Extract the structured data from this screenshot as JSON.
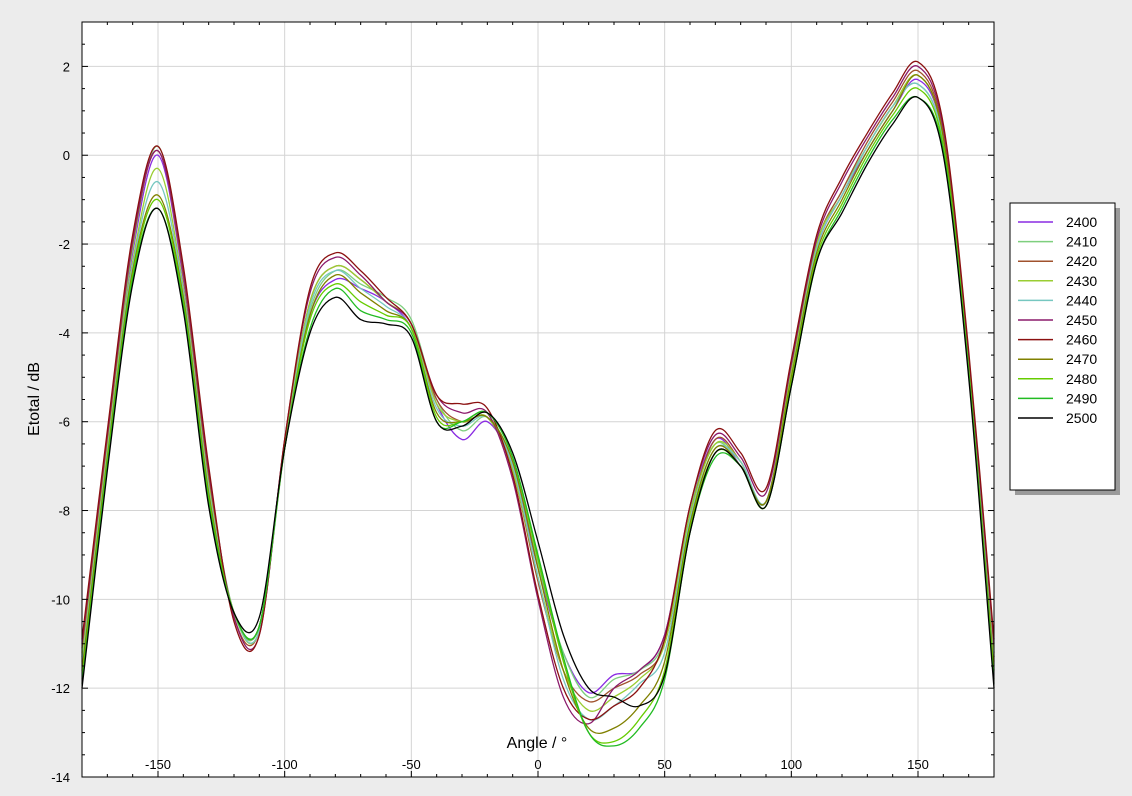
{
  "chart_data": {
    "type": "line",
    "title": "",
    "xlabel": "Angle / °",
    "ylabel": "Etotal / dB",
    "xlim": [
      -180,
      180
    ],
    "ylim": [
      -14,
      3
    ],
    "x_ticks": [
      -150,
      -100,
      -50,
      0,
      50,
      100,
      150
    ],
    "y_ticks": [
      2,
      0,
      -2,
      -4,
      -6,
      -8,
      -10,
      -12,
      -14
    ],
    "grid": true,
    "legend_position": "right",
    "x": [
      -180,
      -170,
      -160,
      -150,
      -140,
      -130,
      -120,
      -110,
      -100,
      -90,
      -80,
      -70,
      -60,
      -50,
      -40,
      -30,
      -20,
      -10,
      0,
      10,
      20,
      30,
      40,
      50,
      60,
      70,
      80,
      90,
      100,
      110,
      120,
      130,
      140,
      150,
      160,
      170,
      180
    ],
    "series": [
      {
        "name": "2400",
        "color": "#8a2be2",
        "values": [
          -11.2,
          -6.5,
          -2.2,
          0.0,
          -2.8,
          -7.3,
          -10.3,
          -10.6,
          -6.5,
          -3.6,
          -2.8,
          -3.0,
          -3.3,
          -3.9,
          -5.6,
          -6.4,
          -6.0,
          -7.0,
          -9.3,
          -11.2,
          -12.1,
          -11.7,
          -11.6,
          -10.8,
          -8.0,
          -6.4,
          -7.0,
          -7.8,
          -4.8,
          -2.1,
          -0.9,
          0.1,
          1.0,
          1.7,
          0.4,
          -4.6,
          -11.3
        ]
      },
      {
        "name": "2410",
        "color": "#7ecf7e",
        "values": [
          -11.3,
          -6.5,
          -2.1,
          0.2,
          -2.7,
          -7.2,
          -10.3,
          -10.6,
          -6.5,
          -3.5,
          -2.6,
          -2.9,
          -3.2,
          -3.7,
          -5.5,
          -6.2,
          -5.9,
          -6.9,
          -9.2,
          -11.2,
          -12.2,
          -11.8,
          -11.6,
          -10.9,
          -8.0,
          -6.5,
          -7.0,
          -7.8,
          -4.8,
          -2.0,
          -0.8,
          0.2,
          1.1,
          1.6,
          0.3,
          -4.6,
          -11.3
        ]
      },
      {
        "name": "2420",
        "color": "#a0522d",
        "values": [
          -11.1,
          -6.4,
          -2.0,
          0.1,
          -2.7,
          -7.2,
          -10.4,
          -10.7,
          -6.5,
          -3.3,
          -2.5,
          -2.8,
          -3.3,
          -3.8,
          -5.5,
          -6.0,
          -5.9,
          -7.1,
          -9.6,
          -11.6,
          -12.3,
          -12.0,
          -11.7,
          -11.0,
          -8.1,
          -6.4,
          -6.9,
          -7.8,
          -4.9,
          -2.0,
          -0.8,
          0.3,
          1.2,
          1.9,
          0.5,
          -4.6,
          -11.2
        ]
      },
      {
        "name": "2430",
        "color": "#9acd32",
        "values": [
          -11.4,
          -6.6,
          -2.4,
          -0.3,
          -3.0,
          -7.4,
          -10.3,
          -10.7,
          -6.5,
          -3.3,
          -2.5,
          -2.8,
          -3.3,
          -3.8,
          -5.6,
          -6.0,
          -5.9,
          -7.1,
          -9.5,
          -11.6,
          -12.5,
          -12.2,
          -11.8,
          -11.0,
          -8.1,
          -6.5,
          -6.9,
          -7.8,
          -4.9,
          -2.0,
          -0.9,
          0.2,
          1.1,
          1.8,
          0.4,
          -4.7,
          -11.4
        ]
      },
      {
        "name": "2440",
        "color": "#76c7c0",
        "values": [
          -11.5,
          -6.7,
          -2.5,
          -0.6,
          -3.1,
          -7.5,
          -10.3,
          -10.7,
          -6.6,
          -3.4,
          -2.6,
          -3.0,
          -3.4,
          -3.9,
          -5.7,
          -6.1,
          -5.9,
          -7.0,
          -9.5,
          -11.8,
          -12.7,
          -12.4,
          -11.9,
          -11.2,
          -8.2,
          -6.6,
          -6.9,
          -7.8,
          -5.0,
          -2.1,
          -0.9,
          0.2,
          1.1,
          1.6,
          0.3,
          -4.7,
          -11.5
        ]
      },
      {
        "name": "2450",
        "color": "#8b1a6b",
        "values": [
          -11.0,
          -6.3,
          -1.9,
          0.1,
          -2.6,
          -7.1,
          -10.4,
          -10.8,
          -6.4,
          -3.1,
          -2.3,
          -2.7,
          -3.3,
          -3.8,
          -5.4,
          -5.8,
          -5.8,
          -7.3,
          -10.0,
          -12.2,
          -12.8,
          -12.0,
          -11.6,
          -10.8,
          -7.9,
          -6.3,
          -6.8,
          -7.6,
          -4.7,
          -1.9,
          -0.6,
          0.4,
          1.3,
          2.0,
          0.6,
          -4.5,
          -11.0
        ]
      },
      {
        "name": "2460",
        "color": "#8b1010",
        "values": [
          -10.9,
          -6.2,
          -1.8,
          0.2,
          -2.5,
          -7.0,
          -10.5,
          -10.8,
          -6.4,
          -3.0,
          -2.2,
          -2.6,
          -3.2,
          -3.8,
          -5.4,
          -5.6,
          -5.7,
          -7.2,
          -9.9,
          -12.0,
          -12.7,
          -12.4,
          -12.0,
          -10.9,
          -7.9,
          -6.2,
          -6.7,
          -7.5,
          -4.6,
          -1.8,
          -0.5,
          0.5,
          1.4,
          2.1,
          0.7,
          -4.4,
          -10.9
        ]
      },
      {
        "name": "2470",
        "color": "#808000",
        "values": [
          -11.6,
          -6.8,
          -2.6,
          -0.9,
          -3.2,
          -7.6,
          -10.3,
          -10.6,
          -6.6,
          -3.6,
          -2.7,
          -3.1,
          -3.5,
          -3.9,
          -5.8,
          -6.0,
          -5.9,
          -6.9,
          -9.3,
          -11.6,
          -12.9,
          -12.9,
          -12.4,
          -11.4,
          -8.3,
          -6.6,
          -7.0,
          -7.8,
          -5.0,
          -2.2,
          -1.0,
          0.1,
          1.0,
          1.8,
          0.4,
          -4.8,
          -11.6
        ]
      },
      {
        "name": "2480",
        "color": "#66cc00",
        "values": [
          -11.8,
          -6.9,
          -2.7,
          -1.0,
          -3.3,
          -7.7,
          -10.3,
          -10.6,
          -6.6,
          -3.7,
          -2.9,
          -3.3,
          -3.6,
          -3.9,
          -5.9,
          -6.0,
          -5.8,
          -6.8,
          -9.1,
          -11.4,
          -13.0,
          -13.2,
          -12.7,
          -11.6,
          -8.4,
          -6.7,
          -7.0,
          -7.9,
          -5.1,
          -2.3,
          -1.1,
          0.0,
          0.9,
          1.5,
          0.2,
          -4.8,
          -11.8
        ]
      },
      {
        "name": "2490",
        "color": "#22bb22",
        "values": [
          -11.9,
          -7.0,
          -2.8,
          -1.2,
          -3.4,
          -7.8,
          -10.3,
          -10.6,
          -6.6,
          -3.9,
          -3.0,
          -3.5,
          -3.7,
          -4.0,
          -6.0,
          -6.0,
          -5.8,
          -6.8,
          -9.0,
          -11.3,
          -13.0,
          -13.3,
          -12.9,
          -11.8,
          -8.5,
          -6.8,
          -7.0,
          -7.9,
          -5.2,
          -2.4,
          -1.2,
          -0.1,
          0.8,
          1.3,
          0.1,
          -4.9,
          -11.9
        ]
      },
      {
        "name": "2500",
        "color": "#000000",
        "values": [
          -12.0,
          -7.1,
          -2.9,
          -1.2,
          -3.5,
          -7.9,
          -10.3,
          -10.4,
          -6.6,
          -4.0,
          -3.2,
          -3.7,
          -3.8,
          -4.1,
          -6.0,
          -6.1,
          -5.8,
          -6.7,
          -8.7,
          -10.8,
          -12.0,
          -12.2,
          -12.4,
          -11.7,
          -8.5,
          -6.7,
          -7.0,
          -7.9,
          -5.2,
          -2.4,
          -1.3,
          -0.2,
          0.7,
          1.3,
          0.0,
          -5.0,
          -12.0
        ]
      }
    ]
  }
}
